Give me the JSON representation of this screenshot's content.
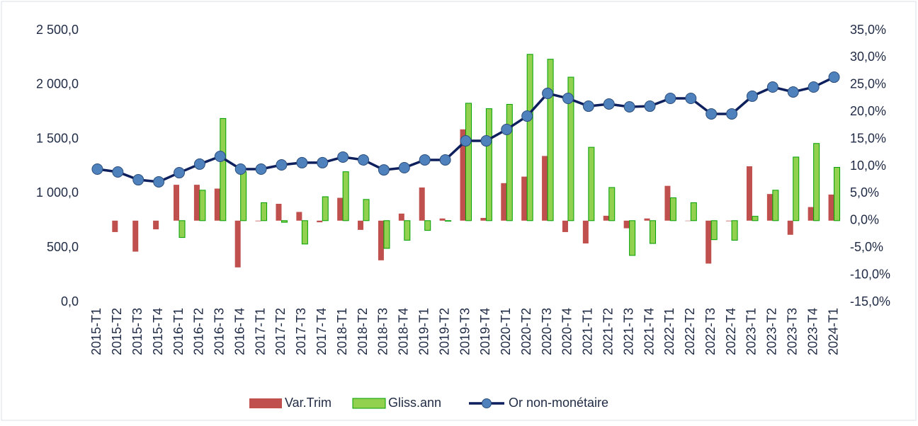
{
  "chart_data": {
    "type": "bar_line",
    "categories": [
      "2015-T1",
      "2015-T2",
      "2015-T3",
      "2015-T4",
      "2016-T1",
      "2016-T2",
      "2016-T3",
      "2016-T4",
      "2017-T1",
      "2017-T2",
      "2017-T3",
      "2017-T4",
      "2018-T1",
      "2018-T2",
      "2018-T3",
      "2018-T4",
      "2019-T1",
      "2019-T2",
      "2019-T3",
      "2019-T4",
      "2020-T1",
      "2020-T2",
      "2020-T3",
      "2020-T4",
      "2021-T1",
      "2021-T2",
      "2021-T3",
      "2021-T4",
      "2022-T1",
      "2022-T2",
      "2022-T3",
      "2022-T4",
      "2023-T1",
      "2023-T2",
      "2023-T3",
      "2023-T4",
      "2024-T1"
    ],
    "series": [
      {
        "name": "Var.Trim",
        "type": "bar",
        "axis": "y2",
        "color": "#c0504d",
        "values": [
          null,
          -2.1,
          -5.7,
          -1.6,
          6.6,
          6.6,
          5.9,
          -8.6,
          -0.1,
          3.1,
          1.6,
          -0.3,
          4.2,
          -1.7,
          -7.3,
          1.3,
          6.1,
          0.4,
          16.8,
          0.5,
          6.9,
          8.1,
          11.9,
          -2.1,
          -4.2,
          0.9,
          -1.4,
          0.4,
          6.4,
          0,
          -7.9,
          -0.1,
          10.0,
          4.9,
          -2.6,
          2.5,
          4.8
        ]
      },
      {
        "name": "Gliss.ann",
        "type": "bar",
        "axis": "y2",
        "color": "#92d050",
        "values": [
          null,
          null,
          null,
          null,
          -3.1,
          5.6,
          18.8,
          9.0,
          3.3,
          -0.3,
          -4.3,
          4.4,
          9.0,
          3.9,
          -5.1,
          -3.6,
          -1.8,
          -0.1,
          21.6,
          20.6,
          21.4,
          30.6,
          29.7,
          26.4,
          13.5,
          6.1,
          -6.4,
          -4.2,
          4.2,
          3.3,
          -3.5,
          -3.6,
          0.8,
          5.6,
          11.7,
          14.2,
          9.8
        ]
      },
      {
        "name": "Or non-monétaire",
        "type": "line",
        "axis": "y",
        "color": "#0d1f5c",
        "values": [
          1224,
          1198,
          1126,
          1107,
          1191,
          1270,
          1341,
          1224,
          1224,
          1263,
          1283,
          1283,
          1335,
          1309,
          1217,
          1237,
          1309,
          1309,
          1484,
          1484,
          1589,
          1712,
          1921,
          1875,
          1803,
          1823,
          1797,
          1803,
          1875,
          1875,
          1732,
          1732,
          1895,
          1979,
          1934,
          1979,
          2070
        ]
      }
    ],
    "ylim": [
      0,
      2500
    ],
    "yticks": [
      {
        "value": 0,
        "label": "0,0"
      },
      {
        "value": 500,
        "label": "500,0"
      },
      {
        "value": 1000,
        "label": "1 000,0"
      },
      {
        "value": 1500,
        "label": "1 500,0"
      },
      {
        "value": 2000,
        "label": "2 000,0"
      },
      {
        "value": 2500,
        "label": "2 500,0"
      }
    ],
    "y2lim": [
      -15,
      35
    ],
    "y2ticks": [
      {
        "value": -15,
        "label": "-15,0%"
      },
      {
        "value": -10,
        "label": "-10,0%"
      },
      {
        "value": -5,
        "label": "-5,0%"
      },
      {
        "value": 0,
        "label": "0,0%"
      },
      {
        "value": 5,
        "label": "5,0%"
      },
      {
        "value": 10,
        "label": "10,0%"
      },
      {
        "value": 15,
        "label": "15,0%"
      },
      {
        "value": 20,
        "label": "20,0%"
      },
      {
        "value": 25,
        "label": "25,0%"
      },
      {
        "value": 30,
        "label": "30,0%"
      },
      {
        "value": 35,
        "label": "35,0%"
      }
    ]
  }
}
